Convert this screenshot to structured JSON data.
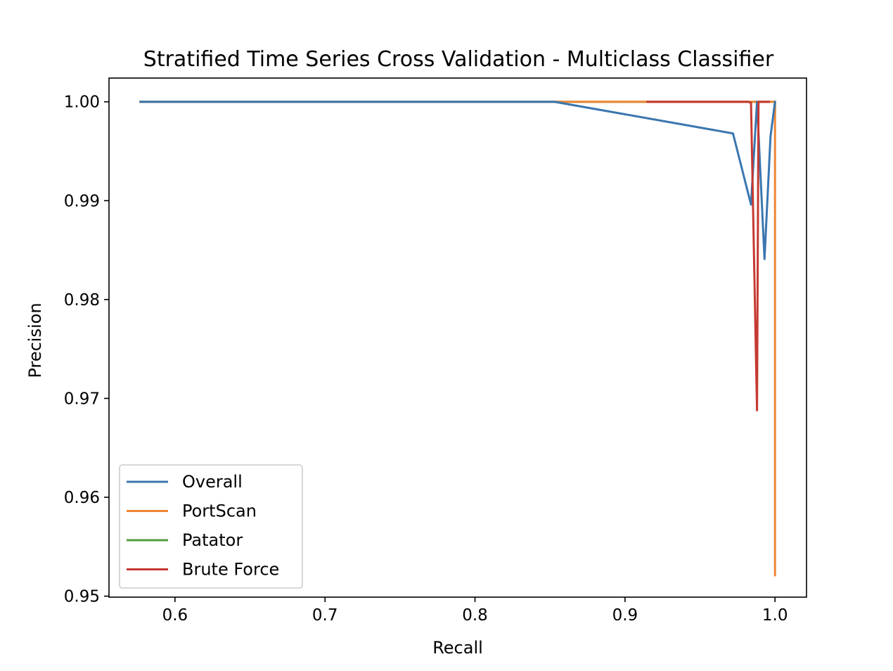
{
  "chart_data": {
    "type": "line",
    "title": "Stratified Time Series Cross Validation - Multiclass Classifier",
    "xlabel": "Recall",
    "ylabel": "Precision",
    "xlim": [
      0.556,
      1.021
    ],
    "ylim": [
      0.9499,
      1.0024
    ],
    "xticks": [
      0.6,
      0.7,
      0.8,
      0.9,
      1.0
    ],
    "xtick_labels": [
      "0.6",
      "0.7",
      "0.8",
      "0.9",
      "1.0"
    ],
    "yticks": [
      0.95,
      0.96,
      0.97,
      0.98,
      0.99,
      1.0
    ],
    "ytick_labels": [
      "0.95",
      "0.96",
      "0.97",
      "0.98",
      "0.99",
      "1.00"
    ],
    "legend_position": "lower-left",
    "series": [
      {
        "name": "Overall",
        "color": "#3b76af",
        "x": [
          0.577,
          0.853,
          0.972,
          0.984,
          0.988,
          0.993,
          0.997,
          1.0
        ],
        "y": [
          1.0,
          1.0,
          0.9968,
          0.9896,
          1.0,
          0.9841,
          0.9965,
          1.0
        ]
      },
      {
        "name": "PortScan",
        "color": "#ef8636",
        "x": [
          0.577,
          0.998,
          1.0,
          1.0,
          1.0
        ],
        "y": [
          1.0,
          1.0,
          1.0,
          0.9521,
          1.0
        ]
      },
      {
        "name": "Patator",
        "color": "#519e3e",
        "x": [
          0.577,
          0.997,
          1.0,
          1.0
        ],
        "y": [
          1.0,
          1.0,
          1.0,
          0.9989
        ]
      },
      {
        "name": "Brute Force",
        "color": "#c53a32",
        "x": [
          0.915,
          0.982,
          0.984,
          0.988,
          0.989,
          0.99,
          0.996
        ],
        "y": [
          1.0,
          1.0,
          0.9999,
          0.9688,
          1.0,
          1.0,
          1.0
        ]
      }
    ]
  }
}
